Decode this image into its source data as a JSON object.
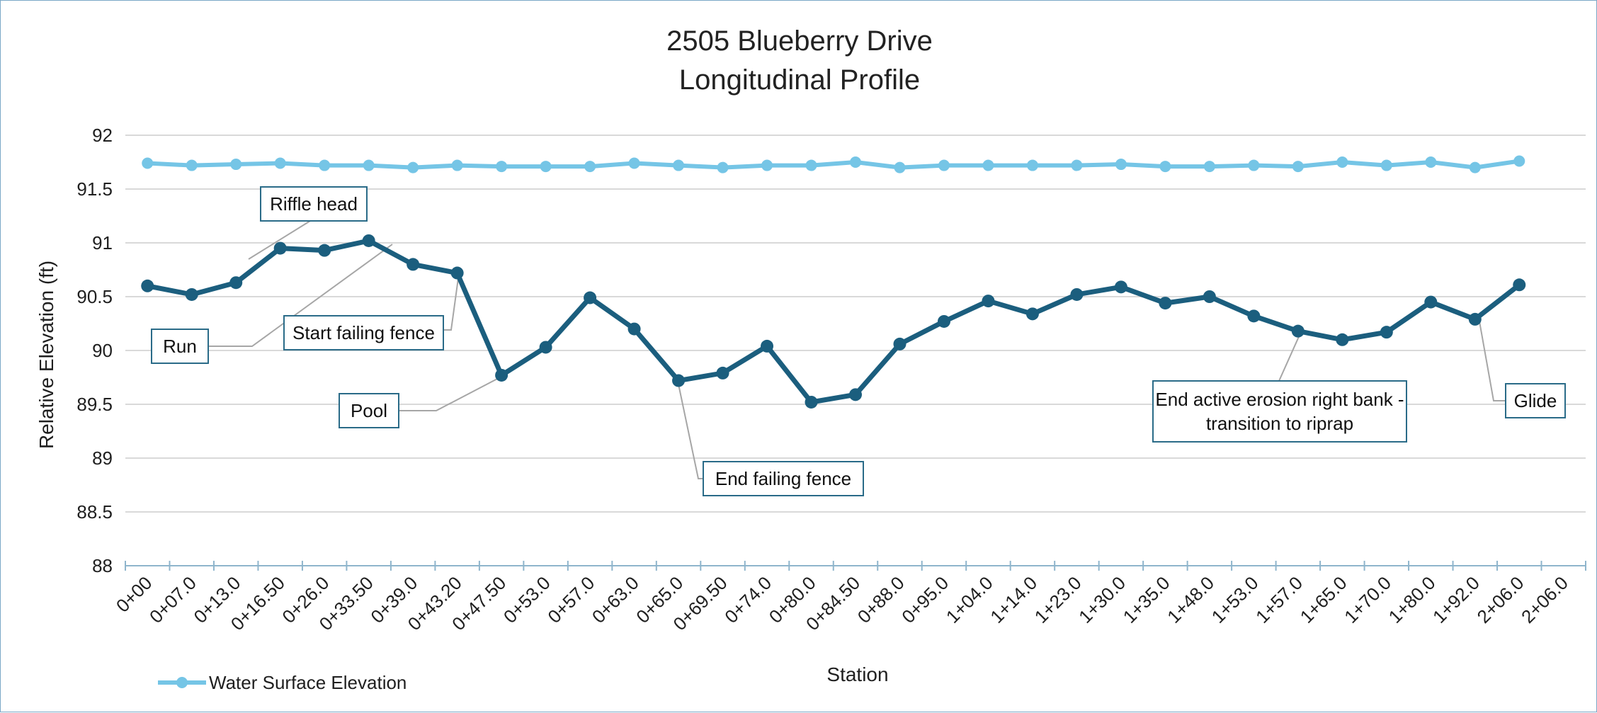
{
  "chart_data": {
    "type": "line",
    "title_lines": [
      "2505 Blueberry Drive",
      "Longitudinal Profile"
    ],
    "xlabel": "Station",
    "ylabel": "Relative Elevation (ft)",
    "ylim": [
      88,
      92
    ],
    "yticks": [
      "92",
      "91.5",
      "91",
      "90.5",
      "90",
      "89.5",
      "89",
      "88.5",
      "88"
    ],
    "grid": true,
    "legend_position": "bottom-left",
    "categories": [
      "0+00",
      "0+07.0",
      "0+13.0",
      "0+16.50",
      "0+26.0",
      "0+33.50",
      "0+39.0",
      "0+43.20",
      "0+47.50",
      "0+53.0",
      "0+57.0",
      "0+63.0",
      "0+65.0",
      "0+69.50",
      "0+74.0",
      "0+80.0",
      "0+84.50",
      "0+88.0",
      "0+95.0",
      "1+04.0",
      "1+14.0",
      "1+23.0",
      "1+30.0",
      "1+35.0",
      "1+48.0",
      "1+53.0",
      "1+57.0",
      "1+65.0",
      "1+70.0",
      "1+80.0",
      "1+92.0",
      "2+06.0",
      "2+06.0"
    ],
    "series": [
      {
        "name": "Water Surface Elevation",
        "color": "#75c5e6",
        "in_legend": true,
        "values": [
          91.74,
          91.72,
          91.73,
          91.74,
          91.72,
          91.72,
          91.7,
          91.72,
          91.71,
          91.71,
          91.71,
          91.74,
          91.72,
          91.7,
          91.72,
          91.72,
          91.75,
          91.7,
          91.72,
          91.72,
          91.72,
          91.72,
          91.73,
          91.71,
          91.71,
          91.72,
          91.71,
          91.75,
          91.72,
          91.75,
          91.7,
          91.76,
          null
        ]
      },
      {
        "color": "#1b5e7e",
        "in_legend": false,
        "values": [
          90.6,
          90.52,
          90.63,
          90.95,
          90.93,
          91.02,
          90.8,
          90.72,
          89.77,
          90.03,
          90.49,
          90.2,
          89.72,
          89.79,
          90.04,
          89.52,
          89.59,
          90.06,
          90.27,
          90.46,
          90.34,
          90.52,
          90.59,
          90.44,
          90.5,
          90.32,
          90.18,
          90.1,
          90.17,
          90.45,
          90.29,
          90.61,
          null
        ]
      }
    ],
    "annotations": [
      {
        "lines": [
          "Riffle head"
        ],
        "point_index": 3
      },
      {
        "lines": [
          "Run"
        ],
        "point_index": 0
      },
      {
        "lines": [
          "Start failing fence"
        ],
        "point_index": 7
      },
      {
        "lines": [
          "Pool"
        ],
        "point_index": 8
      },
      {
        "lines": [
          "End failing fence"
        ],
        "point_index": 12
      },
      {
        "lines": [
          "End active erosion right bank -",
          "transition to riprap"
        ],
        "point_index": 26
      },
      {
        "lines": [
          "Glide"
        ],
        "point_index": 30
      }
    ]
  }
}
